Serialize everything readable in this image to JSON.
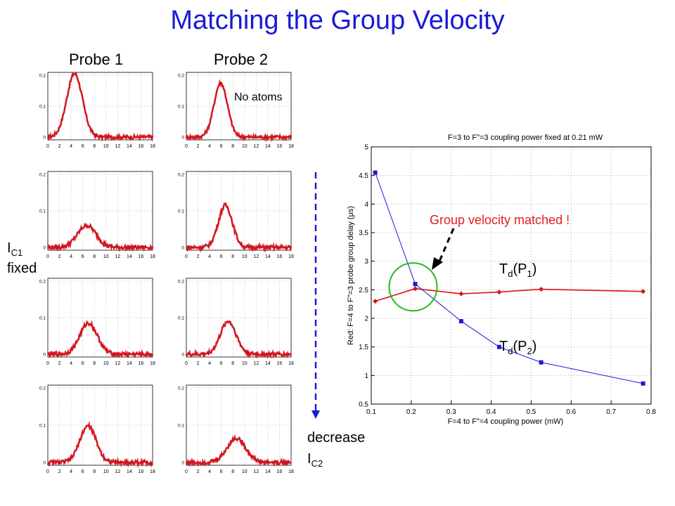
{
  "slide": {
    "title": "Matching the Group Velocity",
    "probe1_label": "Probe 1",
    "probe2_label": "Probe 2",
    "no_atoms_label": "No atoms",
    "ic1_I": "I",
    "ic1_sub": "C1",
    "ic1_fixed": "fixed",
    "decrease_label": "decrease",
    "ic2_I": "I",
    "ic2_sub": "C2",
    "matched_label": "Group velocity matched !",
    "td_p1": {
      "T": "T",
      "d": "d",
      "open": "(P",
      "num": "1",
      "close": ")"
    },
    "td_p2": {
      "T": "T",
      "d": "d",
      "open": "(P",
      "num": "2",
      "close": ")"
    }
  },
  "colors": {
    "title": "#1a1ad6",
    "trace_red": "#dd1111",
    "trace_blue": "#1a1ad6",
    "matched_text": "#e02020",
    "circle": "#22bb22",
    "arrow_blue": "#1a1ad6"
  },
  "chart_data": [
    {
      "type": "line",
      "id": "main",
      "title": "F=3 to F\"=3 coupling power fixed at 0.21 mW",
      "xlabel": "F=4 to F\"=4 coupling power (mW)",
      "ylabel": "Red: F=4 to F\"=3 probe group delay (μs)",
      "xlim": [
        0.1,
        0.8
      ],
      "ylim": [
        0.5,
        5
      ],
      "xticks": [
        "0.1",
        "0.2",
        "0.3",
        "0.4",
        "0.5",
        "0.6",
        "0.7",
        "0.8"
      ],
      "yticks": [
        "0.5",
        "1",
        "1.5",
        "2",
        "2.5",
        "3",
        "3.5",
        "4",
        "4.5",
        "5"
      ],
      "grid": true,
      "series": [
        {
          "color": "#dd1111",
          "marker": "diamond",
          "x": [
            0.11,
            0.21,
            0.325,
            0.42,
            0.525,
            0.78
          ],
          "y": [
            2.3,
            2.52,
            2.43,
            2.46,
            2.51,
            2.47
          ]
        },
        {
          "color": "#1a1ad6",
          "marker": "square",
          "x": [
            0.11,
            0.21,
            0.325,
            0.42,
            0.525,
            0.78
          ],
          "y": [
            4.55,
            2.6,
            1.95,
            1.5,
            1.23,
            0.86
          ]
        }
      ]
    },
    {
      "type": "line",
      "id": "small-panels",
      "xticks": [
        "0",
        "2",
        "4",
        "6",
        "8",
        "10",
        "12",
        "14",
        "16",
        "18"
      ],
      "yticks": [
        "0",
        "0.1",
        "0.2"
      ],
      "xlim": [
        0,
        18
      ],
      "ylim": [
        0,
        0.2
      ],
      "grid": true,
      "panels": [
        {
          "probe": 1,
          "row": 1,
          "center": 4.6,
          "amp": 0.205,
          "width": 1.35
        },
        {
          "probe": 2,
          "row": 1,
          "center": 5.9,
          "amp": 0.175,
          "width": 1.15
        },
        {
          "probe": 1,
          "row": 2,
          "center": 6.7,
          "amp": 0.06,
          "width": 1.6
        },
        {
          "probe": 2,
          "row": 2,
          "center": 6.7,
          "amp": 0.115,
          "width": 1.2
        },
        {
          "probe": 1,
          "row": 3,
          "center": 7.0,
          "amp": 0.085,
          "width": 1.5
        },
        {
          "probe": 2,
          "row": 3,
          "center": 7.2,
          "amp": 0.09,
          "width": 1.35
        },
        {
          "probe": 1,
          "row": 4,
          "center": 6.9,
          "amp": 0.098,
          "width": 1.4
        },
        {
          "probe": 2,
          "row": 4,
          "center": 8.6,
          "amp": 0.065,
          "width": 1.6
        }
      ]
    }
  ]
}
